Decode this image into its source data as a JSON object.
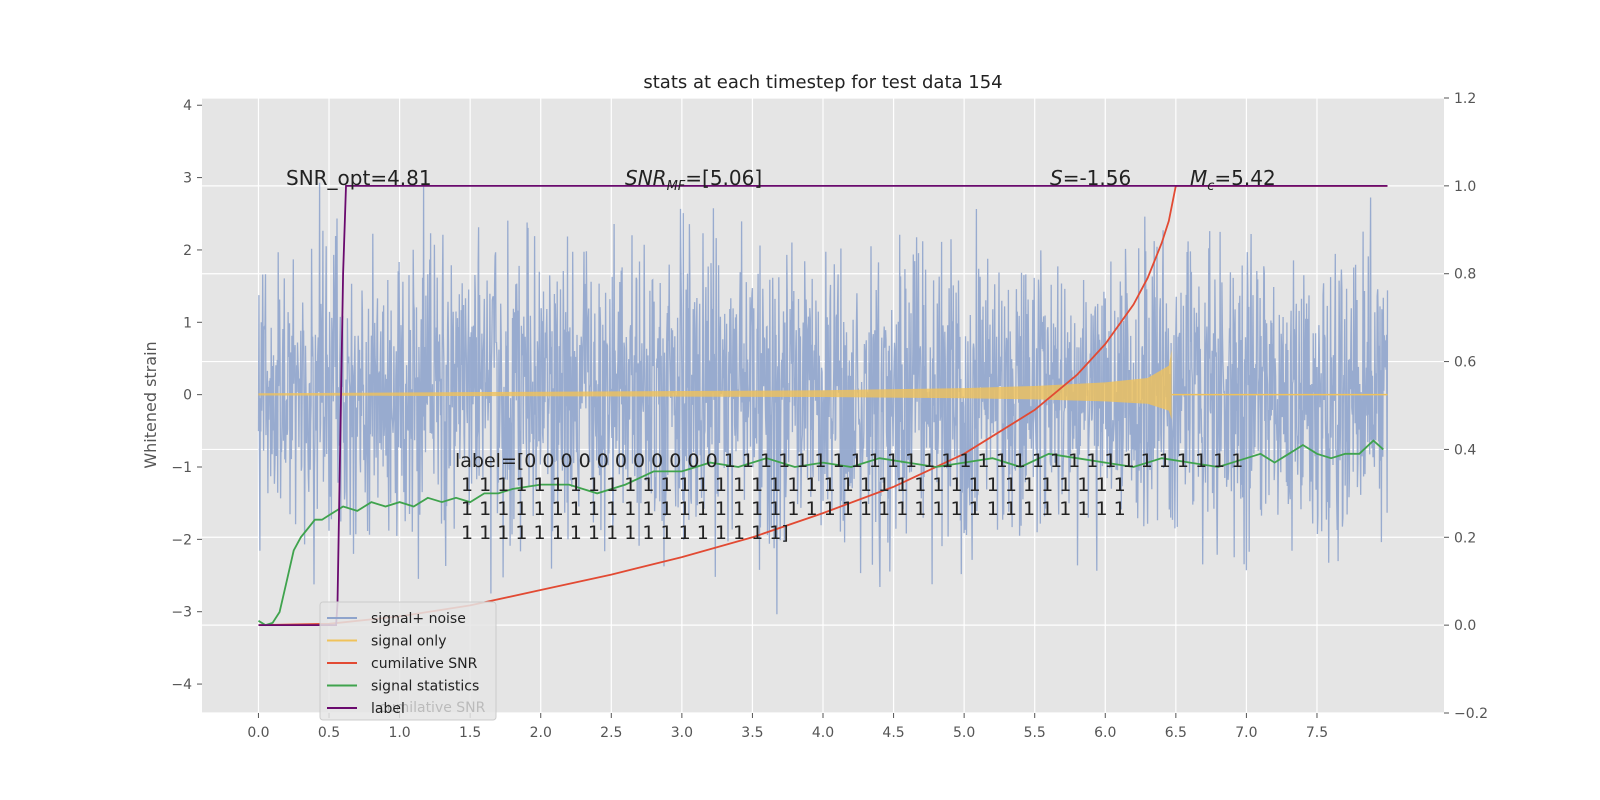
{
  "chart_data": {
    "type": "line",
    "title": "stats at each timestep for test data 154",
    "ylabel": "Whitened strain",
    "xlabel": "",
    "xlim": [
      -0.4,
      8.4
    ],
    "ylim": [
      -4.4,
      4.1
    ],
    "y2lim": [
      -0.2,
      1.2
    ],
    "grid": true,
    "x_ticks": [
      "0.0",
      "0.5",
      "1.0",
      "1.5",
      "2.0",
      "2.5",
      "3.0",
      "3.5",
      "4.0",
      "4.5",
      "5.0",
      "5.5",
      "6.0",
      "6.5",
      "7.0",
      "7.5"
    ],
    "x_tick_values": [
      0,
      0.5,
      1,
      1.5,
      2,
      2.5,
      3,
      3.5,
      4,
      4.5,
      5,
      5.5,
      6,
      6.5,
      7,
      7.5
    ],
    "y_ticks": [
      "4",
      "3",
      "2",
      "1",
      "0",
      "−1",
      "−2",
      "−3",
      "−4"
    ],
    "y_tick_values": [
      4,
      3,
      2,
      1,
      0,
      -1,
      -2,
      -3,
      -4
    ],
    "y2_ticks": [
      "1.2",
      "1.0",
      "0.8",
      "0.6",
      "0.4",
      "0.2",
      "0.0",
      "−0.2"
    ],
    "y2_tick_values": [
      1.2,
      1.0,
      0.8,
      0.6,
      0.4,
      0.2,
      0.0,
      -0.2
    ],
    "annotations": {
      "snr_opt": "SNR_opt=4.81",
      "snr_mf": "SNR_MF=[5.06]",
      "s": "S=-1.56",
      "mc": "M_c=5.42"
    },
    "label_text": [
      "label=[0 0 0 0 0 0 0 0 0 0 0 1 1 1 1 1 1 1 1 1 1 1 1 1 1 1 1 1 1 1 1 1 1 1 1 1 1 1 1 1",
      " 1 1 1 1 1 1 1 1 1 1 1 1 1 1 1 1 1 1 1 1 1 1 1 1 1 1 1 1 1 1 1 1 1 1 1 1 1",
      " 1 1 1 1 1 1 1 1 1 1 1 1 1 1 1 1 1 1 1 1 1 1 1 1 1 1 1 1 1 1 1 1 1 1 1 1 1",
      " 1 1 1 1 1 1 1 1 1 1 1 1 1 1 1 1 1 1]"
    ],
    "legend": {
      "position": "lower-left",
      "entries": [
        {
          "name": "signal+ noise",
          "color": "#8fa4cc"
        },
        {
          "name": "signal only",
          "color": "#f0c25a"
        },
        {
          "name": "cumilative SNR",
          "color": "#e24a33"
        },
        {
          "name": "signal statistics",
          "color": "#3fa34d"
        },
        {
          "name": "label",
          "color": "#6a0a6e"
        }
      ],
      "hidden_text": "cumilative SNR"
    },
    "series": [
      {
        "name": "signal+ noise",
        "axis": "left",
        "color": "#8fa4cc",
        "x_range": [
          0,
          8.0
        ],
        "approx_amplitude": 3.5
      },
      {
        "name": "signal only",
        "axis": "left",
        "color": "#f0c25a",
        "x_range": [
          0,
          8.0
        ],
        "envelope_x": [
          0,
          1,
          2,
          3,
          4,
          5,
          5.5,
          6,
          6.3,
          6.45,
          6.47
        ],
        "envelope_y": [
          0.02,
          0.03,
          0.04,
          0.05,
          0.06,
          0.09,
          0.12,
          0.17,
          0.23,
          0.4,
          0.62
        ]
      },
      {
        "name": "cumilative SNR",
        "axis": "right",
        "color": "#e24a33",
        "x": [
          0,
          0.5,
          1,
          1.5,
          2,
          2.5,
          3,
          3.5,
          4,
          4.5,
          5,
          5.5,
          5.8,
          6.0,
          6.2,
          6.3,
          6.4,
          6.45,
          6.5,
          8.0
        ],
        "y": [
          0.0,
          0.003,
          0.02,
          0.045,
          0.08,
          0.115,
          0.155,
          0.2,
          0.255,
          0.315,
          0.39,
          0.49,
          0.57,
          0.64,
          0.73,
          0.79,
          0.87,
          0.92,
          1.0,
          1.0
        ]
      },
      {
        "name": "signal statistics",
        "axis": "right",
        "color": "#3fa34d",
        "x": [
          0,
          0.05,
          0.1,
          0.15,
          0.2,
          0.25,
          0.3,
          0.35,
          0.4,
          0.45,
          0.5,
          0.6,
          0.7,
          0.8,
          0.9,
          1.0,
          1.1,
          1.2,
          1.3,
          1.4,
          1.5,
          1.6,
          1.7,
          1.8,
          2.0,
          2.2,
          2.4,
          2.6,
          2.8,
          3.0,
          3.2,
          3.4,
          3.6,
          3.8,
          4.0,
          4.2,
          4.4,
          4.6,
          4.8,
          5.0,
          5.2,
          5.4,
          5.6,
          5.8,
          6.0,
          6.2,
          6.4,
          6.6,
          6.8,
          7.0,
          7.1,
          7.2,
          7.3,
          7.4,
          7.5,
          7.6,
          7.7,
          7.8,
          7.9,
          7.97
        ],
        "y": [
          0.01,
          0.0,
          0.005,
          0.03,
          0.1,
          0.17,
          0.2,
          0.22,
          0.24,
          0.24,
          0.25,
          0.27,
          0.26,
          0.28,
          0.27,
          0.28,
          0.27,
          0.29,
          0.28,
          0.29,
          0.28,
          0.3,
          0.3,
          0.31,
          0.32,
          0.32,
          0.3,
          0.32,
          0.35,
          0.35,
          0.37,
          0.36,
          0.38,
          0.36,
          0.37,
          0.36,
          0.38,
          0.37,
          0.36,
          0.37,
          0.38,
          0.36,
          0.39,
          0.38,
          0.37,
          0.36,
          0.38,
          0.37,
          0.36,
          0.38,
          0.39,
          0.37,
          0.39,
          0.41,
          0.39,
          0.38,
          0.39,
          0.39,
          0.42,
          0.4
        ]
      },
      {
        "name": "label",
        "axis": "right",
        "color": "#6a0a6e",
        "x": [
          0,
          0.55,
          0.56,
          0.6,
          0.62,
          8.0
        ],
        "y": [
          0.0,
          0.0,
          0.05,
          0.8,
          1.0,
          1.0
        ]
      }
    ]
  }
}
